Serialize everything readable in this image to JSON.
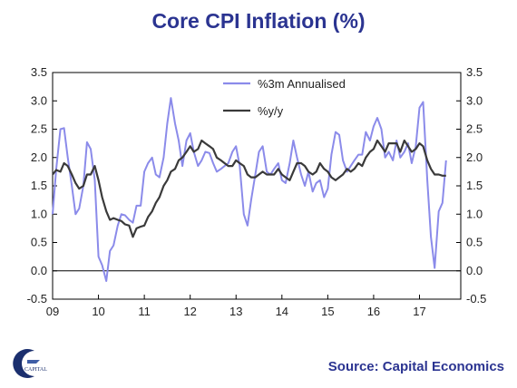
{
  "chart_data": {
    "type": "line",
    "title": "Core CPI Inflation (%)",
    "source": "Source: Capital Economics",
    "logo_text": "CAPITAL",
    "x_tick_labels": [
      "09",
      "10",
      "11",
      "12",
      "13",
      "14",
      "15",
      "16",
      "17"
    ],
    "x_tick_values": [
      2009,
      2010,
      2011,
      2012,
      2013,
      2014,
      2015,
      2016,
      2017
    ],
    "xlim": [
      2009,
      2017.9
    ],
    "ylim": [
      -0.5,
      3.5
    ],
    "y_ticks": [
      -0.5,
      0.0,
      0.5,
      1.0,
      1.5,
      2.0,
      2.5,
      3.0,
      3.5
    ],
    "y_tick_labels": [
      "-0.5",
      "0.0",
      "0.5",
      "1.0",
      "1.5",
      "2.0",
      "2.5",
      "3.0",
      "3.5"
    ],
    "legend_placement": "top-center",
    "grid": false,
    "series": [
      {
        "name": "%3m Annualised",
        "color": "#8b8bea",
        "x": [
          2009.0,
          2009.08,
          2009.17,
          2009.25,
          2009.33,
          2009.42,
          2009.5,
          2009.58,
          2009.67,
          2009.75,
          2009.83,
          2009.92,
          2010.0,
          2010.08,
          2010.17,
          2010.25,
          2010.33,
          2010.42,
          2010.5,
          2010.58,
          2010.67,
          2010.75,
          2010.83,
          2010.92,
          2011.0,
          2011.08,
          2011.17,
          2011.25,
          2011.33,
          2011.42,
          2011.5,
          2011.58,
          2011.67,
          2011.75,
          2011.83,
          2011.92,
          2012.0,
          2012.08,
          2012.17,
          2012.25,
          2012.33,
          2012.42,
          2012.5,
          2012.58,
          2012.67,
          2012.75,
          2012.83,
          2012.92,
          2013.0,
          2013.08,
          2013.17,
          2013.25,
          2013.33,
          2013.42,
          2013.5,
          2013.58,
          2013.67,
          2013.75,
          2013.83,
          2013.92,
          2014.0,
          2014.08,
          2014.17,
          2014.25,
          2014.33,
          2014.42,
          2014.5,
          2014.58,
          2014.67,
          2014.75,
          2014.83,
          2014.92,
          2015.0,
          2015.08,
          2015.17,
          2015.25,
          2015.33,
          2015.42,
          2015.5,
          2015.58,
          2015.67,
          2015.75,
          2015.83,
          2015.92,
          2016.0,
          2016.08,
          2016.17,
          2016.25,
          2016.33,
          2016.42,
          2016.5,
          2016.58,
          2016.67,
          2016.75,
          2016.83,
          2016.92,
          2017.0,
          2017.08,
          2017.17,
          2017.25,
          2017.33,
          2017.42,
          2017.5,
          2017.58
        ],
        "y": [
          1.0,
          1.8,
          2.5,
          2.52,
          2.0,
          1.5,
          1.0,
          1.1,
          1.5,
          2.27,
          2.15,
          1.6,
          0.25,
          0.1,
          -0.18,
          0.35,
          0.45,
          0.8,
          1.0,
          0.98,
          0.9,
          0.85,
          1.15,
          1.15,
          1.75,
          1.9,
          2.0,
          1.7,
          1.65,
          2.0,
          2.6,
          3.05,
          2.6,
          2.3,
          1.85,
          2.3,
          2.43,
          2.1,
          1.85,
          1.95,
          2.1,
          2.08,
          1.9,
          1.75,
          1.8,
          1.85,
          1.9,
          2.1,
          2.2,
          1.85,
          1.0,
          0.8,
          1.25,
          1.7,
          2.1,
          2.2,
          1.75,
          1.7,
          1.8,
          1.9,
          1.6,
          1.55,
          1.9,
          2.3,
          2.0,
          1.7,
          1.5,
          1.75,
          1.4,
          1.55,
          1.6,
          1.3,
          1.45,
          2.05,
          2.45,
          2.4,
          1.95,
          1.75,
          1.85,
          1.95,
          2.05,
          2.05,
          2.45,
          2.3,
          2.55,
          2.7,
          2.5,
          2.0,
          2.1,
          1.95,
          2.3,
          2.0,
          2.1,
          2.25,
          1.9,
          2.2,
          2.88,
          2.98,
          1.6,
          0.6,
          0.05,
          1.05,
          1.2,
          1.95
        ]
      },
      {
        "name": "%y/y",
        "color": "#3a3a3a",
        "x": [
          2009.0,
          2009.08,
          2009.17,
          2009.25,
          2009.33,
          2009.42,
          2009.5,
          2009.58,
          2009.67,
          2009.75,
          2009.83,
          2009.92,
          2010.0,
          2010.08,
          2010.17,
          2010.25,
          2010.33,
          2010.42,
          2010.5,
          2010.58,
          2010.67,
          2010.75,
          2010.83,
          2010.92,
          2011.0,
          2011.08,
          2011.17,
          2011.25,
          2011.33,
          2011.42,
          2011.5,
          2011.58,
          2011.67,
          2011.75,
          2011.83,
          2011.92,
          2012.0,
          2012.08,
          2012.17,
          2012.25,
          2012.33,
          2012.42,
          2012.5,
          2012.58,
          2012.67,
          2012.75,
          2012.83,
          2012.92,
          2013.0,
          2013.08,
          2013.17,
          2013.25,
          2013.33,
          2013.42,
          2013.5,
          2013.58,
          2013.67,
          2013.75,
          2013.83,
          2013.92,
          2014.0,
          2014.08,
          2014.17,
          2014.25,
          2014.33,
          2014.42,
          2014.5,
          2014.58,
          2014.67,
          2014.75,
          2014.83,
          2014.92,
          2015.0,
          2015.08,
          2015.17,
          2015.25,
          2015.33,
          2015.42,
          2015.5,
          2015.58,
          2015.67,
          2015.75,
          2015.83,
          2015.92,
          2016.0,
          2016.08,
          2016.17,
          2016.25,
          2016.33,
          2016.42,
          2016.5,
          2016.58,
          2016.67,
          2016.75,
          2016.83,
          2016.92,
          2017.0,
          2017.08,
          2017.17,
          2017.25,
          2017.33,
          2017.42,
          2017.5,
          2017.58
        ],
        "y": [
          1.7,
          1.78,
          1.75,
          1.9,
          1.85,
          1.7,
          1.55,
          1.45,
          1.5,
          1.7,
          1.7,
          1.85,
          1.6,
          1.3,
          1.05,
          0.9,
          0.93,
          0.9,
          0.88,
          0.82,
          0.8,
          0.6,
          0.75,
          0.78,
          0.8,
          0.95,
          1.05,
          1.2,
          1.3,
          1.5,
          1.6,
          1.75,
          1.8,
          1.95,
          2.0,
          2.1,
          2.2,
          2.1,
          2.15,
          2.3,
          2.25,
          2.2,
          2.15,
          2.0,
          1.95,
          1.9,
          1.85,
          1.85,
          1.95,
          1.9,
          1.85,
          1.7,
          1.65,
          1.65,
          1.7,
          1.75,
          1.7,
          1.7,
          1.7,
          1.8,
          1.7,
          1.65,
          1.6,
          1.75,
          1.9,
          1.9,
          1.85,
          1.75,
          1.7,
          1.75,
          1.9,
          1.8,
          1.75,
          1.65,
          1.6,
          1.65,
          1.7,
          1.8,
          1.75,
          1.8,
          1.9,
          1.85,
          2.0,
          2.1,
          2.15,
          2.3,
          2.2,
          2.1,
          2.25,
          2.25,
          2.25,
          2.1,
          2.3,
          2.2,
          2.1,
          2.15,
          2.25,
          2.2,
          1.95,
          1.8,
          1.7,
          1.7,
          1.68,
          1.68
        ]
      }
    ]
  }
}
